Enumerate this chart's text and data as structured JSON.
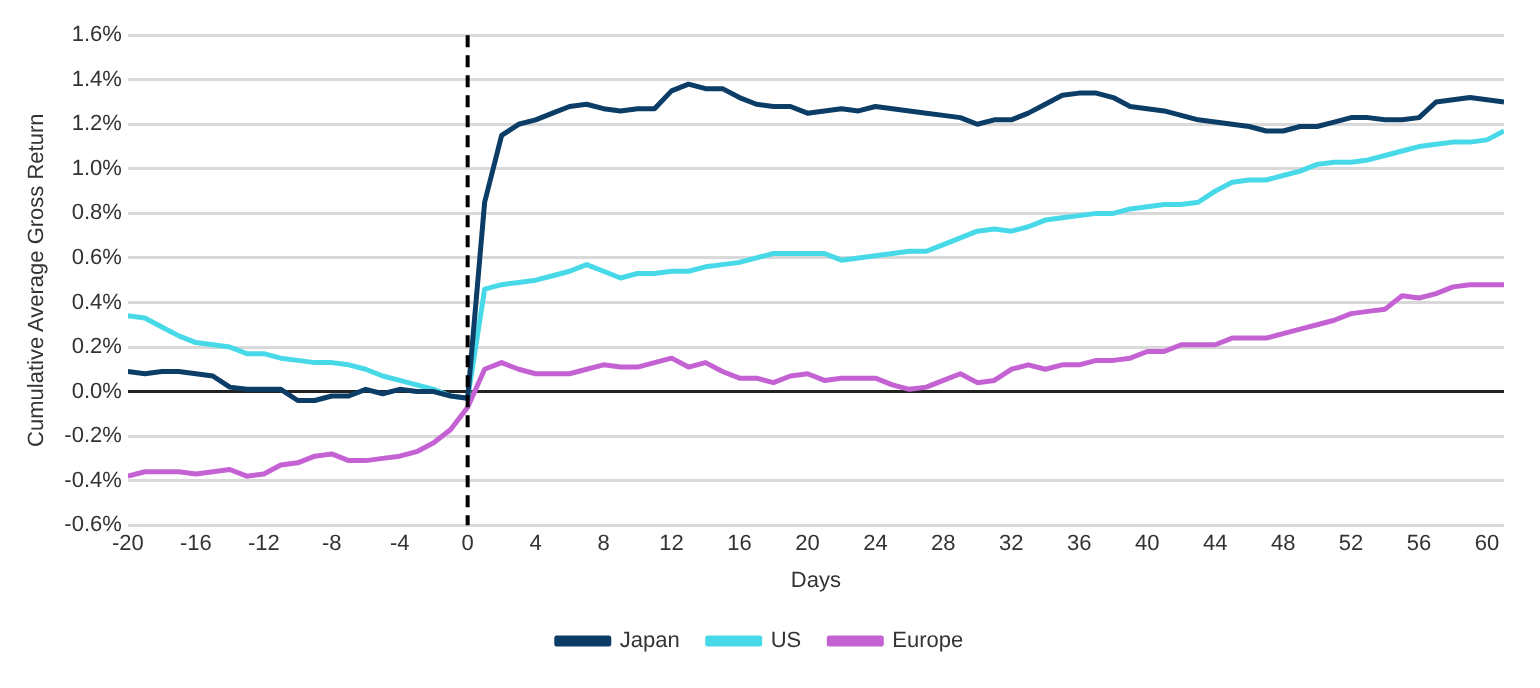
{
  "chart_data": {
    "type": "line",
    "xlabel": "Days",
    "ylabel": "Cumulative Average Gross Return",
    "x": [
      -20,
      -19,
      -18,
      -17,
      -16,
      -15,
      -14,
      -13,
      -12,
      -11,
      -10,
      -9,
      -8,
      -7,
      -6,
      -5,
      -4,
      -3,
      -2,
      -1,
      0,
      1,
      2,
      3,
      4,
      5,
      6,
      7,
      8,
      9,
      10,
      11,
      12,
      13,
      14,
      15,
      16,
      17,
      18,
      19,
      20,
      21,
      22,
      23,
      24,
      25,
      26,
      27,
      28,
      29,
      30,
      31,
      32,
      33,
      34,
      35,
      36,
      37,
      38,
      39,
      40,
      41,
      42,
      43,
      44,
      45,
      46,
      47,
      48,
      49,
      50,
      51,
      52,
      53,
      54,
      55,
      56,
      57,
      58,
      59,
      60,
      61
    ],
    "series": [
      {
        "name": "Japan",
        "color": "#0b3d66",
        "values": [
          0.09,
          0.08,
          0.09,
          0.09,
          0.08,
          0.07,
          0.02,
          0.01,
          0.01,
          0.01,
          -0.04,
          -0.04,
          -0.02,
          -0.02,
          0.01,
          -0.01,
          0.01,
          0.0,
          0.0,
          -0.02,
          -0.03,
          0.85,
          1.15,
          1.2,
          1.22,
          1.25,
          1.28,
          1.29,
          1.27,
          1.26,
          1.27,
          1.27,
          1.35,
          1.38,
          1.36,
          1.36,
          1.32,
          1.29,
          1.28,
          1.28,
          1.25,
          1.26,
          1.27,
          1.26,
          1.28,
          1.27,
          1.26,
          1.25,
          1.24,
          1.23,
          1.2,
          1.22,
          1.22,
          1.25,
          1.29,
          1.33,
          1.34,
          1.34,
          1.32,
          1.28,
          1.27,
          1.26,
          1.24,
          1.22,
          1.21,
          1.2,
          1.19,
          1.17,
          1.17,
          1.19,
          1.19,
          1.21,
          1.23,
          1.23,
          1.22,
          1.22,
          1.23,
          1.3,
          1.31,
          1.32,
          1.31,
          1.3
        ]
      },
      {
        "name": "US",
        "color": "#48d9e8",
        "values": [
          0.34,
          0.33,
          0.29,
          0.25,
          0.22,
          0.21,
          0.2,
          0.17,
          0.17,
          0.15,
          0.14,
          0.13,
          0.13,
          0.12,
          0.1,
          0.07,
          0.05,
          0.03,
          0.01,
          -0.02,
          -0.03,
          0.46,
          0.48,
          0.49,
          0.5,
          0.52,
          0.54,
          0.57,
          0.54,
          0.51,
          0.53,
          0.53,
          0.54,
          0.54,
          0.56,
          0.57,
          0.58,
          0.6,
          0.62,
          0.62,
          0.62,
          0.62,
          0.59,
          0.6,
          0.61,
          0.62,
          0.63,
          0.63,
          0.66,
          0.69,
          0.72,
          0.73,
          0.72,
          0.74,
          0.77,
          0.78,
          0.79,
          0.8,
          0.8,
          0.82,
          0.83,
          0.84,
          0.84,
          0.85,
          0.9,
          0.94,
          0.95,
          0.95,
          0.97,
          0.99,
          1.02,
          1.03,
          1.03,
          1.04,
          1.06,
          1.08,
          1.1,
          1.11,
          1.12,
          1.12,
          1.13,
          1.17
        ]
      },
      {
        "name": "Europe",
        "color": "#c462d4",
        "values": [
          -0.38,
          -0.36,
          -0.36,
          -0.36,
          -0.37,
          -0.36,
          -0.35,
          -0.38,
          -0.37,
          -0.33,
          -0.32,
          -0.29,
          -0.28,
          -0.31,
          -0.31,
          -0.3,
          -0.29,
          -0.27,
          -0.23,
          -0.17,
          -0.07,
          0.1,
          0.13,
          0.1,
          0.08,
          0.08,
          0.08,
          0.1,
          0.12,
          0.11,
          0.11,
          0.13,
          0.15,
          0.11,
          0.13,
          0.09,
          0.06,
          0.06,
          0.04,
          0.07,
          0.08,
          0.05,
          0.06,
          0.06,
          0.06,
          0.03,
          0.01,
          0.02,
          0.05,
          0.08,
          0.04,
          0.05,
          0.1,
          0.12,
          0.1,
          0.12,
          0.12,
          0.14,
          0.14,
          0.15,
          0.18,
          0.18,
          0.21,
          0.21,
          0.21,
          0.24,
          0.24,
          0.24,
          0.26,
          0.28,
          0.3,
          0.32,
          0.35,
          0.36,
          0.37,
          0.43,
          0.42,
          0.44,
          0.47,
          0.48,
          0.48,
          0.48
        ]
      }
    ],
    "xlim": [
      -20,
      61
    ],
    "xticks": [
      -20,
      -16,
      -12,
      -8,
      -4,
      0,
      4,
      8,
      12,
      16,
      20,
      24,
      28,
      32,
      36,
      40,
      44,
      48,
      52,
      56,
      60
    ],
    "ylim": [
      -0.6,
      1.6
    ],
    "yticks": [
      {
        "value": -0.6,
        "label": "-0.6%"
      },
      {
        "value": -0.4,
        "label": "-0.4%"
      },
      {
        "value": -0.2,
        "label": "-0.2%"
      },
      {
        "value": 0,
        "label": "0.0%"
      },
      {
        "value": 0.2,
        "label": "0.2%"
      },
      {
        "value": 0.4,
        "label": "0.4%"
      },
      {
        "value": 0.6,
        "label": "0.6%"
      },
      {
        "value": 0.8,
        "label": "0.8%"
      },
      {
        "value": 1.0,
        "label": "1.0%"
      },
      {
        "value": 1.2,
        "label": "1.2%"
      },
      {
        "value": 1.4,
        "label": "1.4%"
      },
      {
        "value": 1.6,
        "label": "1.6%"
      }
    ],
    "ref_lines": [
      {
        "axis": "x",
        "value": 0,
        "color": "#000000",
        "line_style": "dashed"
      }
    ],
    "grid": "y",
    "legend": "bottom",
    "marker": "none",
    "line_style": "solid"
  }
}
